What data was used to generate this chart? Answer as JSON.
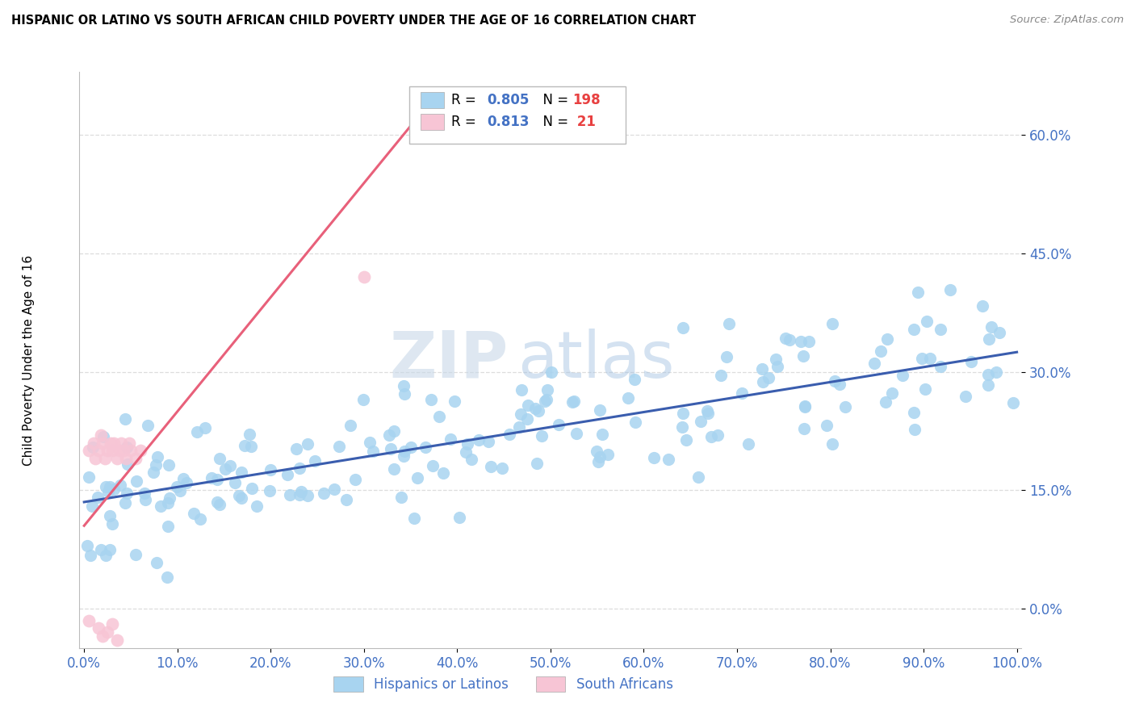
{
  "title": "HISPANIC OR LATINO VS SOUTH AFRICAN CHILD POVERTY UNDER THE AGE OF 16 CORRELATION CHART",
  "source": "Source: ZipAtlas.com",
  "ylabel": "Child Poverty Under the Age of 16",
  "xlabel": "",
  "xlim": [
    -0.005,
    1.005
  ],
  "ylim": [
    -0.05,
    0.68
  ],
  "xticks": [
    0.0,
    0.1,
    0.2,
    0.3,
    0.4,
    0.5,
    0.6,
    0.7,
    0.8,
    0.9,
    1.0
  ],
  "yticks": [
    0.0,
    0.15,
    0.3,
    0.45,
    0.6
  ],
  "ytick_labels": [
    "0.0%",
    "15.0%",
    "30.0%",
    "45.0%",
    "60.0%"
  ],
  "xtick_labels": [
    "0.0%",
    "10.0%",
    "20.0%",
    "30.0%",
    "40.0%",
    "50.0%",
    "60.0%",
    "70.0%",
    "80.0%",
    "90.0%",
    "100.0%"
  ],
  "blue_R": "0.805",
  "blue_N": "198",
  "pink_R": "0.813",
  "pink_N": "21",
  "blue_color": "#A8D4F0",
  "pink_color": "#F7C5D5",
  "blue_line_color": "#3A5DAE",
  "pink_line_color": "#E8607A",
  "legend_label_blue": "Hispanics or Latinos",
  "legend_label_pink": "South Africans",
  "watermark_zip": "ZIP",
  "watermark_atlas": "atlas",
  "bg_color": "#FFFFFF",
  "grid_color": "#DDDDDD",
  "blue_line_x0": 0.0,
  "blue_line_y0": 0.135,
  "blue_line_x1": 1.0,
  "blue_line_y1": 0.325,
  "pink_line_x0": 0.0,
  "pink_line_y0": 0.105,
  "pink_line_x1": 0.38,
  "pink_line_y1": 0.655
}
